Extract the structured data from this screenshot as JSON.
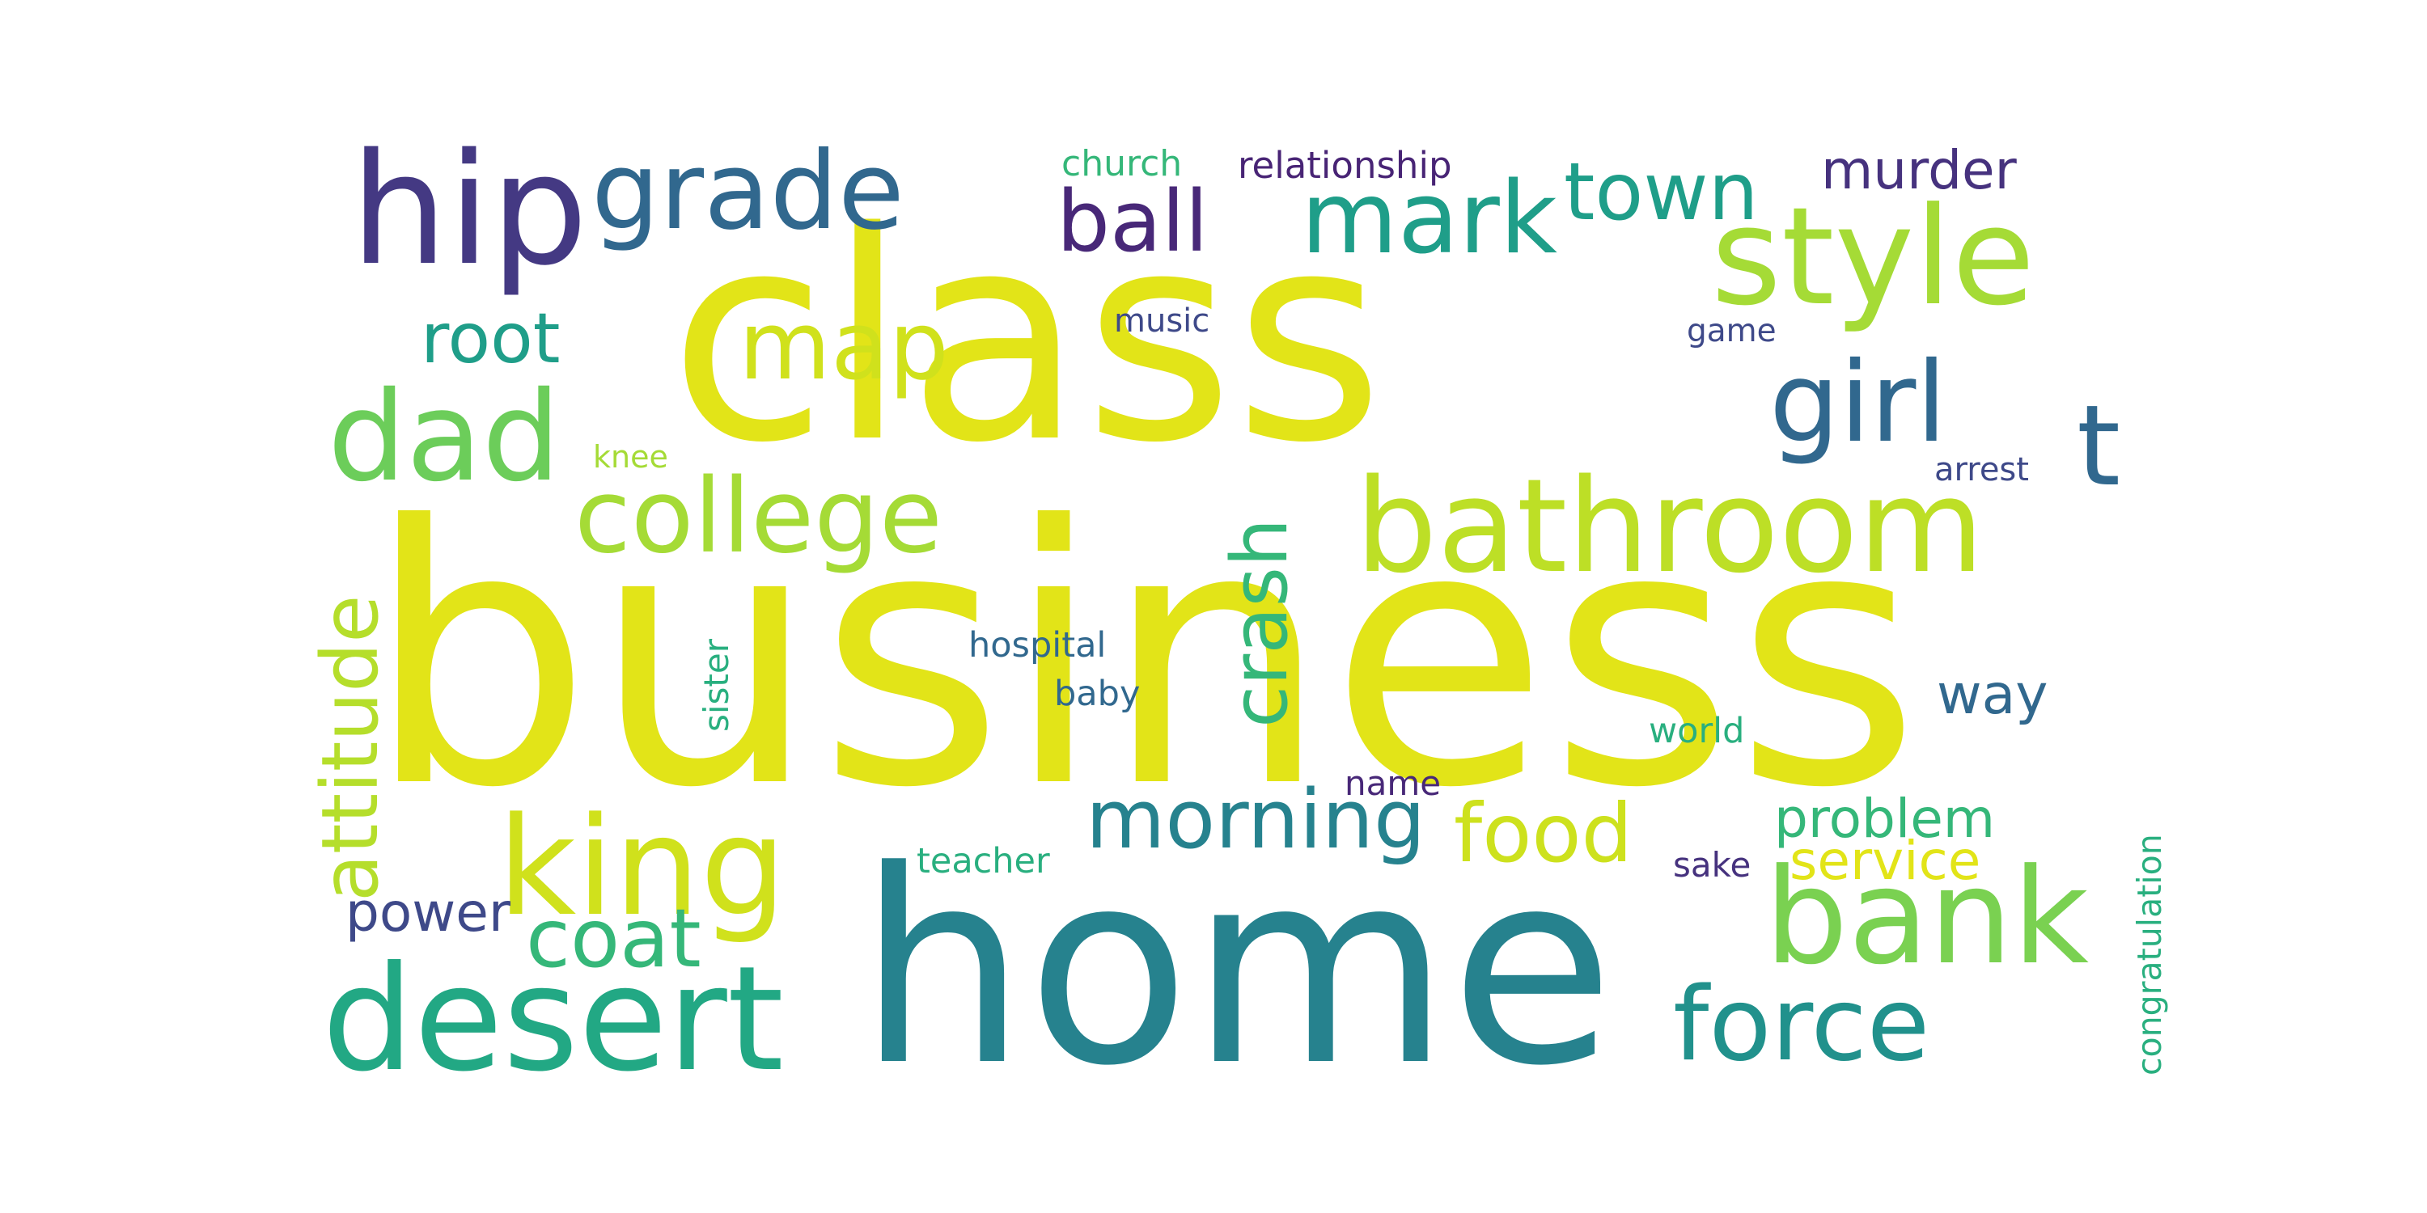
{
  "word_cloud": {
    "words": [
      {
        "text": "business",
        "color": "#e2e418"
      },
      {
        "text": "class",
        "color": "#e2e418"
      },
      {
        "text": "home",
        "color": "#26828e"
      },
      {
        "text": "hip",
        "color": "#443983"
      },
      {
        "text": "grade",
        "color": "#31688e"
      },
      {
        "text": "style",
        "color": "#a5db36"
      },
      {
        "text": "mark",
        "color": "#1f9e89"
      },
      {
        "text": "ball",
        "color": "#482878"
      },
      {
        "text": "town",
        "color": "#1f9e89"
      },
      {
        "text": "murder",
        "color": "#46327e"
      },
      {
        "text": "church",
        "color": "#35b779"
      },
      {
        "text": "relationship",
        "color": "#482475"
      },
      {
        "text": "root",
        "color": "#1f9e89"
      },
      {
        "text": "map",
        "color": "#d0e11c"
      },
      {
        "text": "music",
        "color": "#3e4989"
      },
      {
        "text": "game",
        "color": "#3e4989"
      },
      {
        "text": "dad",
        "color": "#6ccd5a"
      },
      {
        "text": "girl",
        "color": "#31688e"
      },
      {
        "text": "t",
        "color": "#31688e"
      },
      {
        "text": "knee",
        "color": "#a5db36"
      },
      {
        "text": "arrest",
        "color": "#3e4989"
      },
      {
        "text": "college",
        "color": "#a5db36"
      },
      {
        "text": "bathroom",
        "color": "#bddf26"
      },
      {
        "text": "attitude",
        "color": "#b5de2b"
      },
      {
        "text": "crash",
        "color": "#35b779"
      },
      {
        "text": "sister",
        "color": "#29af7f"
      },
      {
        "text": "hospital",
        "color": "#31688e"
      },
      {
        "text": "baby",
        "color": "#31688e"
      },
      {
        "text": "way",
        "color": "#31688e"
      },
      {
        "text": "world",
        "color": "#29af7f"
      },
      {
        "text": "king",
        "color": "#d0e11c"
      },
      {
        "text": "name",
        "color": "#482878"
      },
      {
        "text": "morning",
        "color": "#26828e"
      },
      {
        "text": "food",
        "color": "#cde11d"
      },
      {
        "text": "problem",
        "color": "#35b779"
      },
      {
        "text": "service",
        "color": "#e2e418"
      },
      {
        "text": "sake",
        "color": "#46327e"
      },
      {
        "text": "teacher",
        "color": "#29af7f"
      },
      {
        "text": "congratulation",
        "color": "#29af7f"
      },
      {
        "text": "bank",
        "color": "#7ad151"
      },
      {
        "text": "power",
        "color": "#3e4989"
      },
      {
        "text": "coat",
        "color": "#35b779"
      },
      {
        "text": "desert",
        "color": "#22a884"
      },
      {
        "text": "force",
        "color": "#21918c"
      }
    ]
  }
}
